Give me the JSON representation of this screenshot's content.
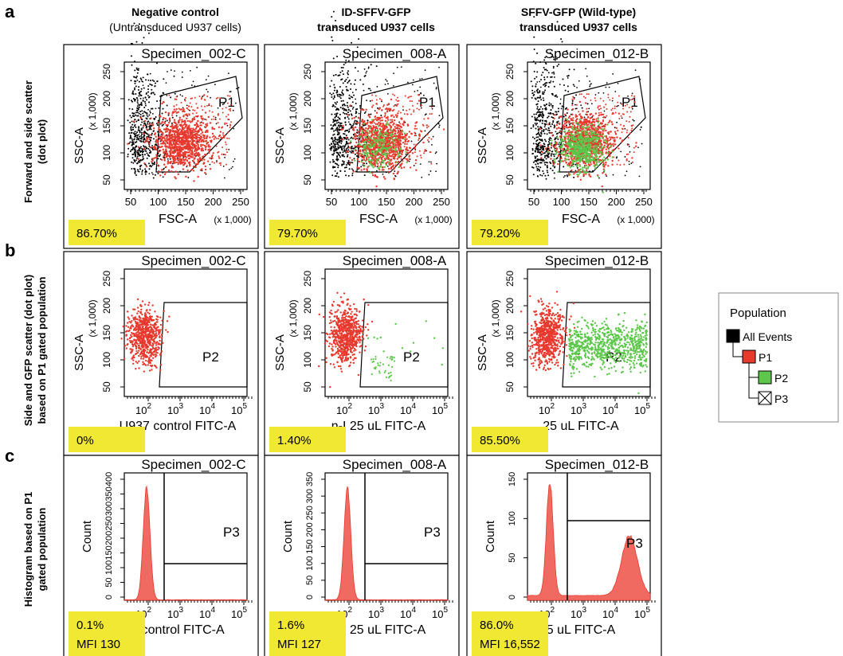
{
  "panel_letters": [
    "a",
    "b",
    "c"
  ],
  "columns": [
    {
      "line1": "Negative control",
      "line2": "(Untransduced U937 cells)"
    },
    {
      "line1": "ID-SFFV-GFP",
      "line2": "transduced U937 cells"
    },
    {
      "line1": "SFFV-GFP (Wild-type)",
      "line2": "transduced U937 cells"
    }
  ],
  "row_labels": [
    {
      "line1": "Forward and side scatter",
      "line2": "(dot plot)"
    },
    {
      "line1": "Side and GFP scatter (dot plot)",
      "line2": "based on P1 gated population"
    },
    {
      "line1": "Histogram based on P1",
      "line2": "gated population"
    }
  ],
  "legend": {
    "title": "Population",
    "items": [
      "All Events",
      "P1",
      "P2",
      "P3"
    ],
    "colors": [
      "#000000",
      "#e8392e",
      "#5cc74a",
      "#ffffff"
    ]
  },
  "colors": {
    "red": "#e8392e",
    "green": "#5cc74a",
    "black": "#000000",
    "highlight": "#f0e832",
    "gate": "#000000"
  },
  "chart_data": [
    {
      "type": "scatter",
      "row": "a",
      "column": 0,
      "specimen": "Specimen_002-C",
      "xlabel": "FSC-A",
      "xscale_note": "(x 1,000)",
      "ylabel": "SSC-A",
      "yscale_note": "(x 1,000)",
      "xticks": [
        "50",
        "100",
        "150",
        "200",
        "250"
      ],
      "yticks": [
        "50",
        "100",
        "150",
        "200",
        "250"
      ],
      "gate": "P1",
      "percent": "86.70%",
      "green_fraction": 0
    },
    {
      "type": "scatter",
      "row": "a",
      "column": 1,
      "specimen": "Specimen_008-A",
      "xlabel": "FSC-A",
      "xscale_note": "(x 1,000)",
      "ylabel": "SSC-A",
      "yscale_note": "(x 1,000)",
      "xticks": [
        "50",
        "100",
        "150",
        "200",
        "250"
      ],
      "yticks": [
        "50",
        "100",
        "150",
        "200",
        "250"
      ],
      "gate": "P1",
      "percent": "79.70%",
      "green_fraction": 0.3
    },
    {
      "type": "scatter",
      "row": "a",
      "column": 2,
      "specimen": "Specimen_012-B",
      "xlabel": "FSC-A",
      "xscale_note": "(x 1,000)",
      "ylabel": "SSC-A",
      "yscale_note": "(x 1,000)",
      "xticks": [
        "50",
        "100",
        "150",
        "200",
        "250"
      ],
      "yticks": [
        "50",
        "100",
        "150",
        "200",
        "250"
      ],
      "gate": "P1",
      "percent": "79.20%",
      "green_fraction": 0.75
    },
    {
      "type": "scatter",
      "row": "b",
      "column": 0,
      "specimen": "Specimen_002-C",
      "xlabel": "U937 control FITC-A",
      "ylabel": "SSC-A",
      "yscale_note": "(x 1,000)",
      "xticks": [
        "10^2",
        "10^3",
        "10^4",
        "10^5"
      ],
      "yticks": [
        "50",
        "100",
        "150",
        "200",
        "250"
      ],
      "gate": "P2",
      "percent": "0%",
      "green_fraction": 0
    },
    {
      "type": "scatter",
      "row": "b",
      "column": 1,
      "specimen": "Specimen_008-A",
      "xlabel": "n-I 25 uL FITC-A",
      "ylabel": "SSC-A",
      "yscale_note": "(x 1,000)",
      "xticks": [
        "10^2",
        "10^3",
        "10^4",
        "10^5"
      ],
      "yticks": [
        "50",
        "100",
        "150",
        "200",
        "250"
      ],
      "gate": "P2",
      "percent": "1.40%",
      "green_fraction": 0.014
    },
    {
      "type": "scatter",
      "row": "b",
      "column": 2,
      "specimen": "Specimen_012-B",
      "xlabel": "25 uL FITC-A",
      "ylabel": "SSC-A",
      "yscale_note": "(x 1,000)",
      "xticks": [
        "10^2",
        "10^3",
        "10^4",
        "10^5"
      ],
      "yticks": [
        "50",
        "100",
        "150",
        "200",
        "250"
      ],
      "gate": "P2",
      "percent": "85.50%",
      "green_fraction": 0.855
    },
    {
      "type": "area",
      "row": "c",
      "column": 0,
      "specimen": "Specimen_002-C",
      "xlabel": "7 control FITC-A",
      "ylabel": "Count",
      "xticks": [
        "10^2",
        "10^3",
        "10^4",
        "10^5"
      ],
      "yticks": [
        "0",
        "50",
        "100",
        "150",
        "200",
        "250",
        "300",
        "350",
        "400"
      ],
      "ylim": [
        0,
        420
      ],
      "gate": "P3",
      "percent": "0.1%",
      "mfi": "MFI 130",
      "second_peak": 0
    },
    {
      "type": "area",
      "row": "c",
      "column": 1,
      "specimen": "Specimen_008-A",
      "xlabel": "n-I 25 uL FITC-A",
      "ylabel": "Count",
      "xticks": [
        "10^2",
        "10^3",
        "10^4",
        "10^5"
      ],
      "yticks": [
        "0",
        "50",
        "100",
        "150",
        "200",
        "250",
        "300",
        "350"
      ],
      "ylim": [
        0,
        360
      ],
      "gate": "P3",
      "percent": "1.6%",
      "mfi": "MFI 127",
      "second_peak": 0
    },
    {
      "type": "area",
      "row": "c",
      "column": 2,
      "specimen": "Specimen_012-B",
      "xlabel": "5 uL FITC-A",
      "ylabel": "Count",
      "xticks": [
        "10^2",
        "10^3",
        "10^4",
        "10^5"
      ],
      "yticks": [
        "0",
        "50",
        "100",
        "150"
      ],
      "ylim": [
        0,
        175
      ],
      "gate": "P3",
      "percent": "86.0%",
      "mfi": "MFI 16,552",
      "second_peak": 0.5
    }
  ]
}
